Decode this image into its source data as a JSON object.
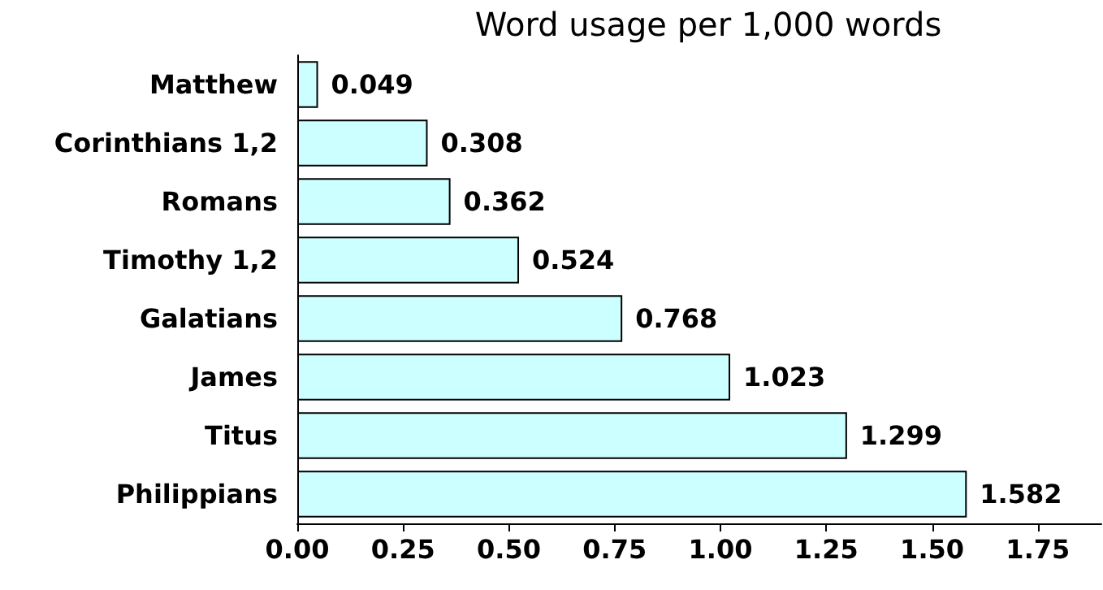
{
  "chart_data": {
    "type": "bar",
    "orientation": "horizontal",
    "title": "Word usage per 1,000 words",
    "categories": [
      "Matthew",
      "Corinthians 1,2",
      "Romans",
      "Timothy 1,2",
      "Galatians",
      "James",
      "Titus",
      "Philippians"
    ],
    "values": [
      0.049,
      0.308,
      0.362,
      0.524,
      0.768,
      1.023,
      1.299,
      1.582
    ],
    "color": "#ccffff",
    "data_labels": true,
    "xlim": [
      0,
      1.9
    ],
    "xticks": [
      {
        "value": 0,
        "label": "0.00"
      },
      {
        "value": 0.25,
        "label": "0.25"
      },
      {
        "value": 0.5,
        "label": "0.50"
      },
      {
        "value": 0.75,
        "label": "0.75"
      },
      {
        "value": 1,
        "label": "1.00"
      },
      {
        "value": 1.25,
        "label": "1.25"
      },
      {
        "value": 1.5,
        "label": "1.50"
      },
      {
        "value": 1.75,
        "label": "1.75"
      }
    ]
  }
}
